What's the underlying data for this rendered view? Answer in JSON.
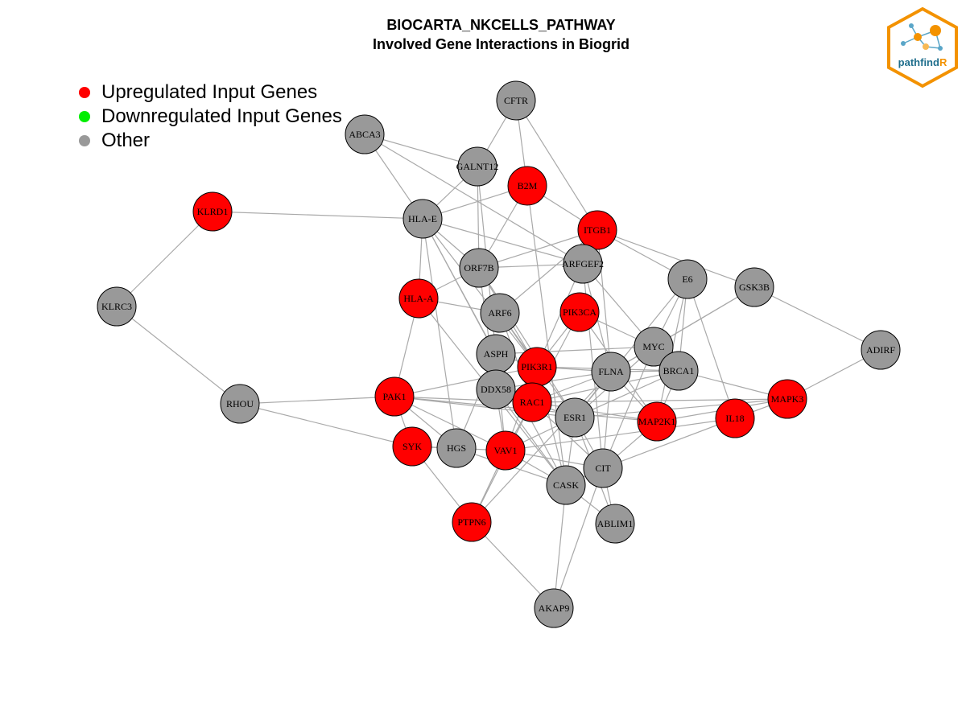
{
  "title": {
    "line1": "BIOCARTA_NKCELLS_PATHWAY",
    "line2": "Involved Gene Interactions in Biogrid"
  },
  "legend": [
    {
      "label": "Upregulated Input Genes",
      "color": "#ff0000"
    },
    {
      "label": "Downregulated Input Genes",
      "color": "#00ee00"
    },
    {
      "label": "Other",
      "color": "#999999"
    }
  ],
  "logo": {
    "text_main": "pathfind",
    "text_accent": "R",
    "accent_color": "#f39200",
    "text_color": "#1f6e8c"
  },
  "colors": {
    "up": "#ff0000",
    "other": "#999999",
    "edge": "#a9a9a9"
  },
  "nodes": [
    {
      "id": "CFTR",
      "type": "other"
    },
    {
      "id": "ABCA3",
      "type": "other"
    },
    {
      "id": "GALNT12",
      "type": "other"
    },
    {
      "id": "B2M",
      "type": "up"
    },
    {
      "id": "KLRD1",
      "type": "up"
    },
    {
      "id": "HLA-E",
      "type": "other"
    },
    {
      "id": "ITGB1",
      "type": "up"
    },
    {
      "id": "ORF7B",
      "type": "other"
    },
    {
      "id": "ARFGEF2",
      "type": "other"
    },
    {
      "id": "E6",
      "type": "other"
    },
    {
      "id": "GSK3B",
      "type": "other"
    },
    {
      "id": "KLRC3",
      "type": "other"
    },
    {
      "id": "HLA-A",
      "type": "up"
    },
    {
      "id": "ARF6",
      "type": "other"
    },
    {
      "id": "PIK3CA",
      "type": "up"
    },
    {
      "id": "ADIRF",
      "type": "other"
    },
    {
      "id": "MYC",
      "type": "other"
    },
    {
      "id": "ASPH",
      "type": "other"
    },
    {
      "id": "PIK3R1",
      "type": "up"
    },
    {
      "id": "FLNA",
      "type": "other"
    },
    {
      "id": "BRCA1",
      "type": "other"
    },
    {
      "id": "DDX58",
      "type": "other"
    },
    {
      "id": "RHOU",
      "type": "other"
    },
    {
      "id": "PAK1",
      "type": "up"
    },
    {
      "id": "RAC1",
      "type": "up"
    },
    {
      "id": "MAPK3",
      "type": "up"
    },
    {
      "id": "ESR1",
      "type": "other"
    },
    {
      "id": "MAP2K1",
      "type": "up"
    },
    {
      "id": "IL18",
      "type": "up"
    },
    {
      "id": "SYK",
      "type": "up"
    },
    {
      "id": "HGS",
      "type": "other"
    },
    {
      "id": "VAV1",
      "type": "up"
    },
    {
      "id": "CIT",
      "type": "other"
    },
    {
      "id": "CASK",
      "type": "other"
    },
    {
      "id": "PTPN6",
      "type": "up"
    },
    {
      "id": "ABLIM1",
      "type": "other"
    },
    {
      "id": "AKAP9",
      "type": "other"
    }
  ],
  "edges": [
    [
      "KLRD1",
      "HLA-E"
    ],
    [
      "KLRD1",
      "KLRC3"
    ],
    [
      "KLRC3",
      "RHOU"
    ],
    [
      "RHOU",
      "PAK1"
    ],
    [
      "RHOU",
      "SYK"
    ],
    [
      "CFTR",
      "GALNT12"
    ],
    [
      "CFTR",
      "B2M"
    ],
    [
      "CFTR",
      "ITGB1"
    ],
    [
      "ABCA3",
      "HLA-E"
    ],
    [
      "ABCA3",
      "ARFGEF2"
    ],
    [
      "ABCA3",
      "GALNT12"
    ],
    [
      "GALNT12",
      "HLA-E"
    ],
    [
      "GALNT12",
      "ORF7B"
    ],
    [
      "GALNT12",
      "ASPH"
    ],
    [
      "B2M",
      "HLA-E"
    ],
    [
      "B2M",
      "ORF7B"
    ],
    [
      "B2M",
      "ITGB1"
    ],
    [
      "B2M",
      "CASK"
    ],
    [
      "HLA-E",
      "HLA-A"
    ],
    [
      "HLA-E",
      "ORF7B"
    ],
    [
      "HLA-E",
      "ARFGEF2"
    ],
    [
      "HLA-E",
      "ASPH"
    ],
    [
      "HLA-E",
      "HGS"
    ],
    [
      "HLA-E",
      "CASK"
    ],
    [
      "HLA-E",
      "PIK3R1"
    ],
    [
      "ITGB1",
      "ORF7B"
    ],
    [
      "ITGB1",
      "E6"
    ],
    [
      "ITGB1",
      "GSK3B"
    ],
    [
      "ITGB1",
      "PIK3R1"
    ],
    [
      "ITGB1",
      "ARF6"
    ],
    [
      "ITGB1",
      "FLNA"
    ],
    [
      "ORF7B",
      "ARFGEF2"
    ],
    [
      "ORF7B",
      "HLA-A"
    ],
    [
      "ORF7B",
      "DDX58"
    ],
    [
      "ORF7B",
      "PIK3R1"
    ],
    [
      "ORF7B",
      "ESR1"
    ],
    [
      "ARFGEF2",
      "MYC"
    ],
    [
      "ARFGEF2",
      "CIT"
    ],
    [
      "ARFGEF2",
      "FLNA"
    ],
    [
      "E6",
      "MYC"
    ],
    [
      "E6",
      "BRCA1"
    ],
    [
      "E6",
      "ESR1"
    ],
    [
      "E6",
      "MAP2K1"
    ],
    [
      "E6",
      "IL18"
    ],
    [
      "GSK3B",
      "MYC"
    ],
    [
      "GSK3B",
      "ADIRF"
    ],
    [
      "GSK3B",
      "FLNA"
    ],
    [
      "ADIRF",
      "MAPK3"
    ],
    [
      "HLA-A",
      "PAK1"
    ],
    [
      "HLA-A",
      "ARF6"
    ],
    [
      "HLA-A",
      "CASK"
    ],
    [
      "ARF6",
      "RAC1"
    ],
    [
      "ARF6",
      "ESR1"
    ],
    [
      "ARF6",
      "PIK3R1"
    ],
    [
      "PIK3CA",
      "PIK3R1"
    ],
    [
      "PIK3CA",
      "RAC1"
    ],
    [
      "PIK3CA",
      "MAP2K1"
    ],
    [
      "PIK3CA",
      "MYC"
    ],
    [
      "MYC",
      "BRCA1"
    ],
    [
      "MYC",
      "ESR1"
    ],
    [
      "MYC",
      "FLNA"
    ],
    [
      "MYC",
      "CIT"
    ],
    [
      "MYC",
      "ASPH"
    ],
    [
      "ASPH",
      "PIK3R1"
    ],
    [
      "ASPH",
      "VAV1"
    ],
    [
      "ASPH",
      "HGS"
    ],
    [
      "PIK3R1",
      "FLNA"
    ],
    [
      "PIK3R1",
      "BRCA1"
    ],
    [
      "PIK3R1",
      "RAC1"
    ],
    [
      "PIK3R1",
      "VAV1"
    ],
    [
      "PIK3R1",
      "PAK1"
    ],
    [
      "PIK3R1",
      "CASK"
    ],
    [
      "FLNA",
      "BRCA1"
    ],
    [
      "FLNA",
      "RAC1"
    ],
    [
      "FLNA",
      "ESR1"
    ],
    [
      "FLNA",
      "CIT"
    ],
    [
      "FLNA",
      "MAP2K1"
    ],
    [
      "FLNA",
      "DDX58"
    ],
    [
      "FLNA",
      "PTPN6"
    ],
    [
      "BRCA1",
      "ESR1"
    ],
    [
      "BRCA1",
      "MAPK3"
    ],
    [
      "BRCA1",
      "MAP2K1"
    ],
    [
      "BRCA1",
      "RAC1"
    ],
    [
      "DDX58",
      "RAC1"
    ],
    [
      "DDX58",
      "VAV1"
    ],
    [
      "DDX58",
      "CASK"
    ],
    [
      "DDX58",
      "ESR1"
    ],
    [
      "PAK1",
      "RAC1"
    ],
    [
      "PAK1",
      "MAP2K1"
    ],
    [
      "PAK1",
      "HGS"
    ],
    [
      "PAK1",
      "VAV1"
    ],
    [
      "PAK1",
      "ESR1"
    ],
    [
      "PAK1",
      "SYK"
    ],
    [
      "RAC1",
      "VAV1"
    ],
    [
      "RAC1",
      "ESR1"
    ],
    [
      "RAC1",
      "MAP2K1"
    ],
    [
      "RAC1",
      "CIT"
    ],
    [
      "RAC1",
      "PTPN6"
    ],
    [
      "RAC1",
      "MAPK3"
    ],
    [
      "ESR1",
      "CIT"
    ],
    [
      "ESR1",
      "CASK"
    ],
    [
      "ESR1",
      "MAPK3"
    ],
    [
      "ESR1",
      "ABLIM1"
    ],
    [
      "ESR1",
      "VAV1"
    ],
    [
      "MAP2K1",
      "MAPK3"
    ],
    [
      "MAP2K1",
      "CIT"
    ],
    [
      "IL18",
      "MAPK3"
    ],
    [
      "IL18",
      "CIT"
    ],
    [
      "IL18",
      "VAV1"
    ],
    [
      "SYK",
      "VAV1"
    ],
    [
      "SYK",
      "PTPN6"
    ],
    [
      "SYK",
      "HGS"
    ],
    [
      "HGS",
      "CASK"
    ],
    [
      "VAV1",
      "CASK"
    ],
    [
      "VAV1",
      "CIT"
    ],
    [
      "VAV1",
      "PTPN6"
    ],
    [
      "CIT",
      "CASK"
    ],
    [
      "CIT",
      "ABLIM1"
    ],
    [
      "CIT",
      "AKAP9"
    ],
    [
      "CASK",
      "AKAP9"
    ],
    [
      "CASK",
      "ABLIM1"
    ],
    [
      "PTPN6",
      "AKAP9"
    ]
  ]
}
